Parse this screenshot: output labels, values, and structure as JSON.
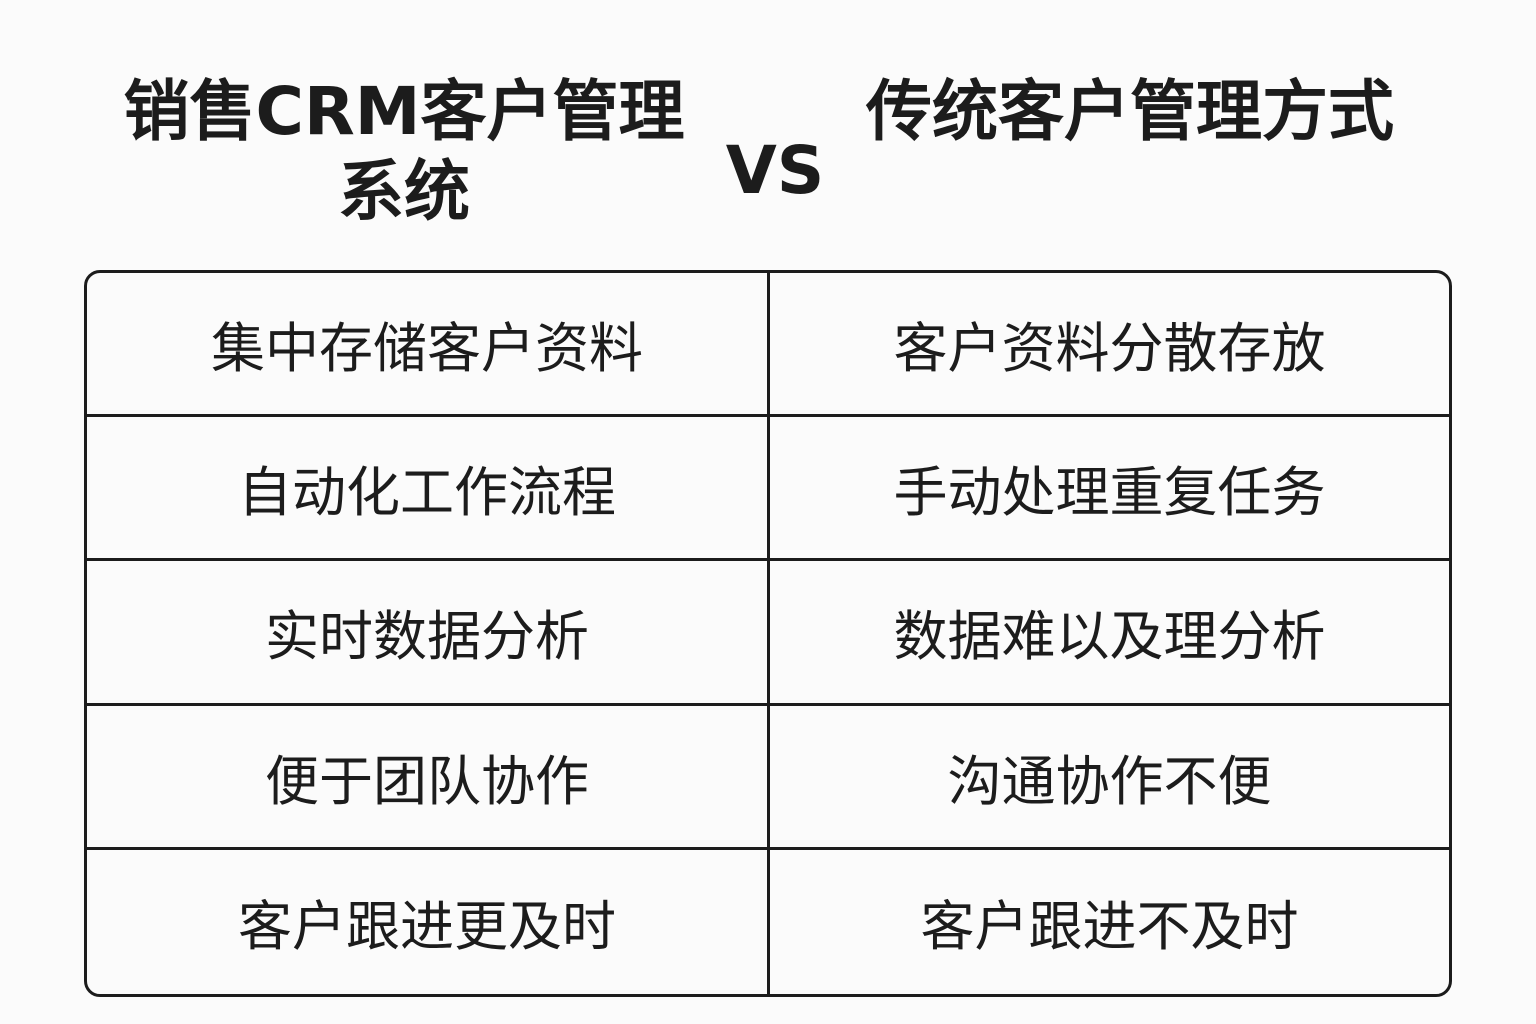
{
  "title_left_line1": "销售CRM客户管理",
  "title_left_line2": "系统",
  "vs": "VS",
  "title_right": "传统客户管理方式",
  "rows": [
    {
      "left": "集中存储客户资料",
      "right": "客户资料分散存放"
    },
    {
      "left": "自动化工作流程",
      "right": "手动处理重复任务"
    },
    {
      "left": "实时数据分析",
      "right": "数据难以及理分析"
    },
    {
      "left": "便于团队协作",
      "right": "沟通协作不便"
    },
    {
      "left": "客户跟进更及时",
      "right": "客户跟进不及时"
    }
  ],
  "colors": {
    "text": "#1c1c1c",
    "background": "#fbfbfb",
    "border": "#1c1c1c"
  }
}
